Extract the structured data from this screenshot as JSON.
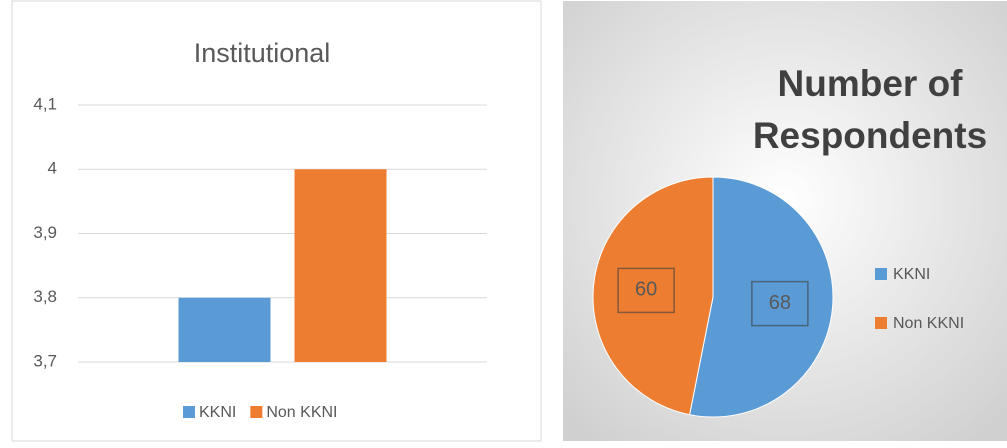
{
  "chart_data": [
    {
      "type": "bar",
      "title": "Institutional",
      "categories": [
        null
      ],
      "series": [
        {
          "name": "KKNI",
          "color": "#5b9bd5",
          "values": [
            3.8
          ]
        },
        {
          "name": "Non KKNI",
          "color": "#ed7d31",
          "values": [
            4
          ]
        }
      ],
      "ylim": [
        3.7,
        4.1
      ],
      "yticks": [
        {
          "value": 3.7,
          "label": "3,7"
        },
        {
          "value": 3.8,
          "label": "3,8"
        },
        {
          "value": 3.9,
          "label": "3,9"
        },
        4,
        {
          "value": 4.1,
          "label": "4,1"
        }
      ],
      "grid": true,
      "legend": "bottom"
    },
    {
      "type": "pie",
      "title": "Number of Respondents",
      "categories": [
        "KKNI",
        "Non KKNI"
      ],
      "values": [
        68,
        60
      ],
      "colors": [
        "#5b9bd5",
        "#ed7d31"
      ],
      "legend": "right"
    }
  ]
}
